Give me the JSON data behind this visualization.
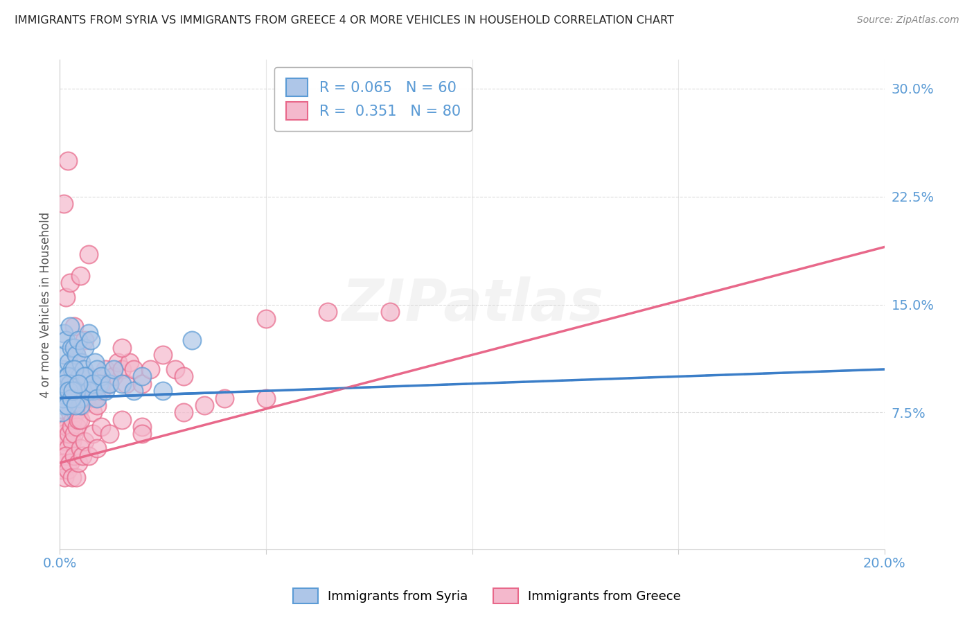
{
  "title": "IMMIGRANTS FROM SYRIA VS IMMIGRANTS FROM GREECE 4 OR MORE VEHICLES IN HOUSEHOLD CORRELATION CHART",
  "source": "Source: ZipAtlas.com",
  "ylabel": "4 or more Vehicles in Household",
  "yticks": [
    "7.5%",
    "15.0%",
    "22.5%",
    "30.0%"
  ],
  "ytick_vals": [
    7.5,
    15.0,
    22.5,
    30.0
  ],
  "xlim": [
    0.0,
    20.0
  ],
  "ylim": [
    -2.0,
    32.0
  ],
  "legend_syria_r": "0.065",
  "legend_syria_n": "60",
  "legend_greece_r": "0.351",
  "legend_greece_n": "80",
  "color_syria_fill": "#aec6e8",
  "color_syria_edge": "#5b9bd5",
  "color_greece_fill": "#f4b8cc",
  "color_greece_edge": "#e8688a",
  "color_syria_line": "#3b7ec8",
  "color_greece_line": "#e8688a",
  "background_color": "#ffffff",
  "grid_color": "#cccccc",
  "syria_line_start_x": 0.0,
  "syria_line_start_y": 8.5,
  "syria_line_end_x": 20.0,
  "syria_line_end_y": 10.5,
  "greece_line_start_x": 0.0,
  "greece_line_start_y": 4.0,
  "greece_line_end_x": 20.0,
  "greece_line_end_y": 19.0,
  "syria_x": [
    0.05,
    0.08,
    0.1,
    0.12,
    0.15,
    0.18,
    0.2,
    0.22,
    0.25,
    0.28,
    0.3,
    0.32,
    0.35,
    0.38,
    0.4,
    0.42,
    0.45,
    0.48,
    0.5,
    0.52,
    0.55,
    0.58,
    0.6,
    0.65,
    0.7,
    0.75,
    0.8,
    0.85,
    0.9,
    0.95,
    0.1,
    0.15,
    0.2,
    0.25,
    0.3,
    0.35,
    0.4,
    0.5,
    0.6,
    0.7,
    0.8,
    0.9,
    1.0,
    1.1,
    1.2,
    1.3,
    1.5,
    1.8,
    2.0,
    2.5,
    0.05,
    0.08,
    0.12,
    0.18,
    0.22,
    0.28,
    0.32,
    0.38,
    0.45,
    3.2
  ],
  "syria_y": [
    9.5,
    10.5,
    13.0,
    11.5,
    12.5,
    10.0,
    9.0,
    11.0,
    13.5,
    12.0,
    10.5,
    9.0,
    12.0,
    10.0,
    11.5,
    9.5,
    12.5,
    10.0,
    8.5,
    11.0,
    9.5,
    10.5,
    12.0,
    10.0,
    13.0,
    12.5,
    9.0,
    11.0,
    10.5,
    9.5,
    8.0,
    9.0,
    10.0,
    9.5,
    8.5,
    10.5,
    9.0,
    8.0,
    10.0,
    9.0,
    9.5,
    8.5,
    10.0,
    9.0,
    9.5,
    10.5,
    9.5,
    9.0,
    10.0,
    9.0,
    7.5,
    8.5,
    9.5,
    8.0,
    9.0,
    8.5,
    9.0,
    8.0,
    9.5,
    12.5
  ],
  "greece_x": [
    0.05,
    0.08,
    0.1,
    0.12,
    0.15,
    0.18,
    0.2,
    0.22,
    0.25,
    0.28,
    0.3,
    0.32,
    0.35,
    0.38,
    0.4,
    0.42,
    0.45,
    0.48,
    0.5,
    0.55,
    0.6,
    0.65,
    0.7,
    0.75,
    0.8,
    0.85,
    0.9,
    1.0,
    1.1,
    1.2,
    1.3,
    1.4,
    1.5,
    1.6,
    1.7,
    1.8,
    2.0,
    2.2,
    2.5,
    2.8,
    0.05,
    0.08,
    0.12,
    0.15,
    0.2,
    0.25,
    0.3,
    0.35,
    0.4,
    0.45,
    0.5,
    0.55,
    0.6,
    0.7,
    0.8,
    0.9,
    1.0,
    1.2,
    1.5,
    2.0,
    3.0,
    3.5,
    4.0,
    5.0,
    6.5,
    0.15,
    0.25,
    0.35,
    0.5,
    0.7,
    1.0,
    1.5,
    2.0,
    3.0,
    5.0,
    8.0,
    0.1,
    0.2,
    0.4,
    0.6
  ],
  "greece_y": [
    6.5,
    5.5,
    6.0,
    4.5,
    5.5,
    6.5,
    5.0,
    6.0,
    7.5,
    6.5,
    5.5,
    7.0,
    6.0,
    7.5,
    8.0,
    6.5,
    7.0,
    8.5,
    7.0,
    8.0,
    9.0,
    8.5,
    10.0,
    9.5,
    7.5,
    8.5,
    8.0,
    9.0,
    10.5,
    9.5,
    10.0,
    11.0,
    10.5,
    9.5,
    11.0,
    10.5,
    9.5,
    10.5,
    11.5,
    10.5,
    3.5,
    4.0,
    3.0,
    4.5,
    3.5,
    4.0,
    3.0,
    4.5,
    3.0,
    4.0,
    5.0,
    4.5,
    5.5,
    4.5,
    6.0,
    5.0,
    6.5,
    6.0,
    7.0,
    6.5,
    7.5,
    8.0,
    8.5,
    8.5,
    14.5,
    15.5,
    16.5,
    13.5,
    17.0,
    18.5,
    9.5,
    12.0,
    6.0,
    10.0,
    14.0,
    14.5,
    22.0,
    25.0,
    11.5,
    12.5
  ]
}
